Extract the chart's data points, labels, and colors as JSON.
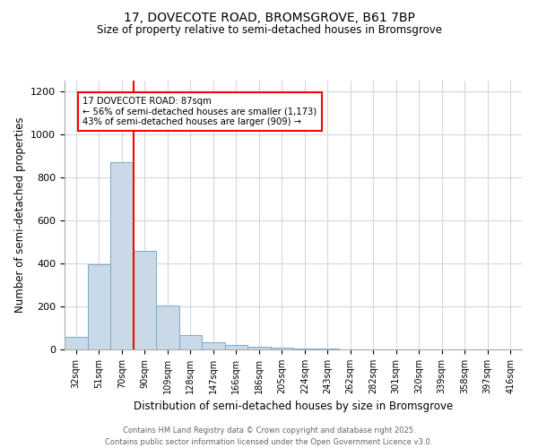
{
  "title1": "17, DOVECOTE ROAD, BROMSGROVE, B61 7BP",
  "title2": "Size of property relative to semi-detached houses in Bromsgrove",
  "xlabel": "Distribution of semi-detached houses by size in Bromsgrove",
  "ylabel": "Number of semi-detached properties",
  "bin_labels": [
    "32sqm",
    "51sqm",
    "70sqm",
    "90sqm",
    "109sqm",
    "128sqm",
    "147sqm",
    "166sqm",
    "186sqm",
    "205sqm",
    "224sqm",
    "243sqm",
    "262sqm",
    "282sqm",
    "301sqm",
    "320sqm",
    "339sqm",
    "358sqm",
    "397sqm",
    "416sqm"
  ],
  "bar_heights": [
    60,
    395,
    870,
    460,
    205,
    65,
    35,
    22,
    12,
    8,
    5,
    3,
    2,
    1,
    1,
    0,
    0,
    0,
    0,
    0
  ],
  "bar_color": "#c9d9e8",
  "bar_edge_color": "#7aaac8",
  "red_line_x": 2.5,
  "annotation_title": "17 DOVECOTE ROAD: 87sqm",
  "annotation_line1": "← 56% of semi-detached houses are smaller (1,173)",
  "annotation_line2": "43% of semi-detached houses are larger (909) →",
  "vline_color": "red",
  "ylim": [
    0,
    1250
  ],
  "yticks": [
    0,
    200,
    400,
    600,
    800,
    1000,
    1200
  ],
  "footer1": "Contains HM Land Registry data © Crown copyright and database right 2025.",
  "footer2": "Contains public sector information licensed under the Open Government Licence v3.0.",
  "annotation_box_color": "#ffffff",
  "annotation_border_color": "red",
  "grid_color": "#d0d8e0"
}
